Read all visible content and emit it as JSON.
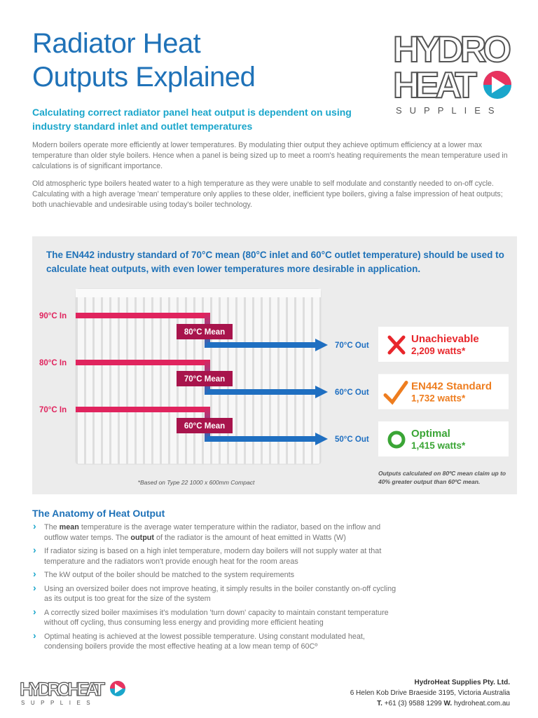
{
  "header": {
    "title_lines": [
      "Radiator Heat",
      "Outputs Explained"
    ],
    "logo": {
      "line1": "HYDRO",
      "line2": "HEAT",
      "tagline": "SUPPLIES"
    }
  },
  "subtitle": "Calculating correct radiator panel heat output is dependent on using industry standard inlet and outlet temperatures",
  "paragraphs": [
    "Modern boilers operate more efficiently at lower temperatures. By modulating thier output they achieve optimum efficiency at a lower max temperature than older style boilers. Hence when a panel is being sized up to meet a room's heating requirements the mean temperature used in calculations is of significant importance.",
    "Old atmospheric type boilers heated water to a high temperature as they were unable to self modulate and constantly needed to on-off cycle. Calculating with a high average 'mean' temperature only applies to these older, inefficient type boilers, giving a false impression of heat outputs; both unachievable and undesirable using today's boiler technology."
  ],
  "diagram": {
    "heading": "The EN442 industry standard of 70°C mean (80°C inlet and 60°C outlet temperature) should be used to calculate heat outputs, with even lower temperatures more desirable in application.",
    "flows": [
      {
        "in": "90°C In",
        "mean": "80°C Mean",
        "out": "70°C Out"
      },
      {
        "in": "80°C In",
        "mean": "70°C Mean",
        "out": "60°C Out"
      },
      {
        "in": "70°C In",
        "mean": "60°C Mean",
        "out": "50°C Out"
      }
    ],
    "results": [
      {
        "label": "Unachievable",
        "watts": "2,209 watts*"
      },
      {
        "label": "EN442 Standard",
        "watts": "1,732 watts*"
      },
      {
        "label": "Optimal",
        "watts": "1,415 watts*"
      }
    ],
    "footnote": "*Based on Type 22 1000 x 600mm Compact",
    "note": "Outputs calculated on 80ºC mean claim up to 40% greater output than 60ºC mean."
  },
  "anatomy": {
    "heading": "The Anatomy of Heat Output",
    "bullets": [
      [
        {
          "text": "The "
        },
        {
          "text": "mean",
          "bold": true
        },
        {
          "text": " temperature is the average water temperature within the radiator, based on the inflow and outflow water temps.  The "
        },
        {
          "text": "output",
          "bold": true
        },
        {
          "text": " of the radiator is the amount of heat emitted in Watts (W)"
        }
      ],
      [
        {
          "text": "If radiator sizing is based on a high inlet temperature, modern day boilers will not supply water at that temperature and the radiators won't provide enough heat for the room areas"
        }
      ],
      [
        {
          "text": "The kW output of the boiler should be matched to the system requirements"
        }
      ],
      [
        {
          "text": "Using an oversized boiler does not improve heating, it simply results in the boiler constantly on-off cycling as its output is too great for the size of the system"
        }
      ],
      [
        {
          "text": "A correctly sized boiler maximises it's modulation 'turn down' capacity to maintain constant temperature without off cycling, thus consuming less energy and providing more efficient heating"
        }
      ],
      [
        {
          "text": "Optimal heating is achieved at the lowest possible temperature. Using constant modulated heat, condensing boilers provide the most effective heating at a low mean temp of 60Cº"
        }
      ]
    ]
  },
  "footer": {
    "logo": {
      "name": "HYDROHEAT",
      "tagline": "SUPPLIES"
    },
    "company": "HydroHeat Supplies Pty. Ltd.",
    "address": "6 Helen Kob Drive Braeside 3195, Victoria Australia",
    "phone_label": "T.",
    "phone": "+61 (3) 9588 1299",
    "web_label": "W.",
    "web": "hydroheat.com.au"
  }
}
